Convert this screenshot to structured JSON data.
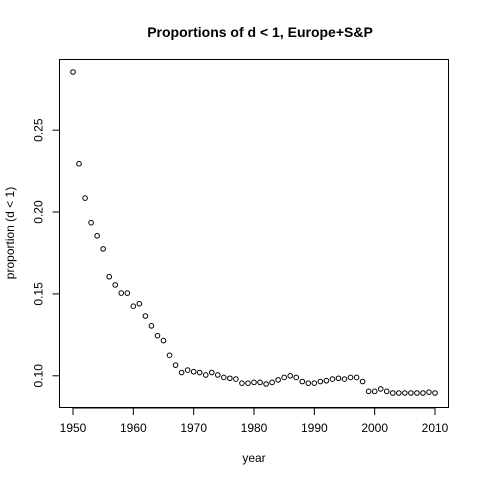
{
  "chart_data": {
    "type": "scatter",
    "title": "Proportions of d < 1, Europe+S&P",
    "xlabel": "year",
    "ylabel": "proportion (d < 1)",
    "xlim": [
      1950,
      2010
    ],
    "ylim": [
      0.0895,
      0.2855
    ],
    "x_ticks": [
      1950,
      1960,
      1970,
      1980,
      1990,
      2000,
      2010
    ],
    "y_ticks": [
      0.1,
      0.15,
      0.2,
      0.25
    ],
    "y_tick_labels": [
      "0.10",
      "0.15",
      "0.20",
      "0.25"
    ],
    "grid": false,
    "legend": "none",
    "marker": "open-circle",
    "series": [
      {
        "x": [
          1950,
          1951,
          1952,
          1953,
          1954,
          1955,
          1956,
          1957,
          1958,
          1959,
          1960,
          1961,
          1962,
          1963,
          1964,
          1965,
          1966,
          1967,
          1968,
          1969,
          1970,
          1971,
          1972,
          1973,
          1974,
          1975,
          1976,
          1977,
          1978,
          1979,
          1980,
          1981,
          1982,
          1983,
          1984,
          1985,
          1986,
          1987,
          1988,
          1989,
          1990,
          1991,
          1992,
          1993,
          1994,
          1995,
          1996,
          1997,
          1998,
          1999,
          2000,
          2001,
          2002,
          2003,
          2004,
          2005,
          2006,
          2007,
          2008,
          2009,
          2010
        ],
        "y": [
          0.2855,
          0.2295,
          0.2085,
          0.1935,
          0.1855,
          0.1775,
          0.1605,
          0.1555,
          0.1505,
          0.1505,
          0.1425,
          0.144,
          0.1365,
          0.1305,
          0.1245,
          0.1215,
          0.1125,
          0.1065,
          0.102,
          0.1035,
          0.1025,
          0.102,
          0.1005,
          0.102,
          0.1005,
          0.099,
          0.0985,
          0.098,
          0.0955,
          0.0955,
          0.096,
          0.096,
          0.095,
          0.096,
          0.0975,
          0.099,
          0.1,
          0.099,
          0.0965,
          0.0955,
          0.0955,
          0.0965,
          0.097,
          0.098,
          0.0985,
          0.098,
          0.099,
          0.099,
          0.0965,
          0.0905,
          0.0905,
          0.092,
          0.0905,
          0.0895,
          0.0895,
          0.0895,
          0.0895,
          0.0895,
          0.0895,
          0.09,
          0.0895
        ]
      }
    ]
  }
}
